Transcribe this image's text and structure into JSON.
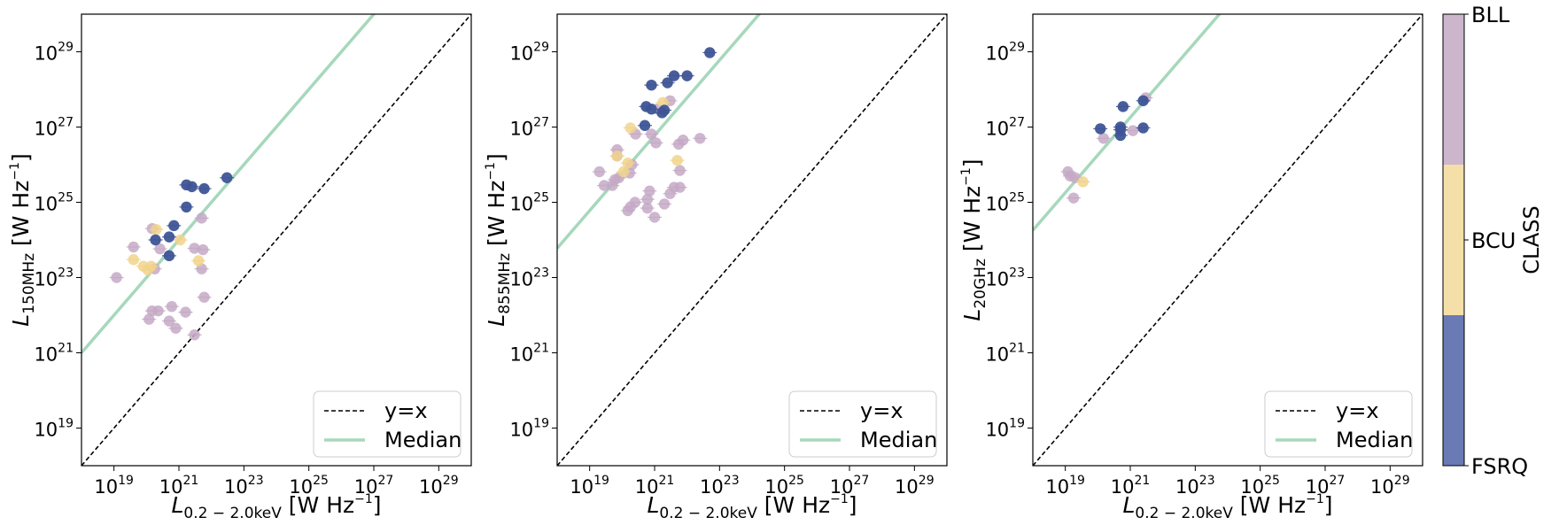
{
  "chart_data": [
    {
      "type": "scatter",
      "panel": "left",
      "xlabel": {
        "main": "L",
        "sub": "0.2 − 2.0keV",
        "unit": " [W Hz",
        "exp": "−1",
        "close": "]"
      },
      "ylabel": {
        "main": "L",
        "sub": "150MHz",
        "unit": " [W Hz",
        "exp": "−1",
        "close": "]"
      },
      "xscale": "log",
      "yscale": "log",
      "xlim": [
        1e+18,
        1e+30
      ],
      "ylim": [
        1e+18,
        1e+30
      ],
      "median_line": {
        "label": "Median",
        "intercept_at_1e18": 1e+21
      },
      "identity_line": {
        "label": "y=x"
      },
      "legend": {
        "position": "bottom-right",
        "entries": [
          "y=x",
          "Median"
        ]
      },
      "series": [
        {
          "name": "FSRQ",
          "points": [
            [
              3e+22,
              4.5e+25
            ],
            [
              6e+21,
              2.3e+25
            ],
            [
              2.5e+21,
              2.6e+25
            ],
            [
              1.7e+21,
              2.9e+25
            ],
            [
              1.7e+21,
              7.5e+24
            ],
            [
              7e+20,
              2.4e+24
            ],
            [
              5e+20,
              1.2e+24
            ],
            [
              1.9e+20,
              1e+24
            ],
            [
              5e+20,
              3.8e+23
            ]
          ]
        },
        {
          "name": "BCU",
          "points": [
            [
              2e+20,
              1.9e+24
            ],
            [
              1.1e+21,
              1e+24
            ],
            [
              4e+19,
              3e+23
            ],
            [
              8e+19,
              2e+23
            ],
            [
              1.4e+20,
              2e+23
            ],
            [
              1.1e+20,
              1.6e+23
            ],
            [
              4e+21,
              2.8e+23
            ]
          ]
        },
        {
          "name": "BLL",
          "points": [
            [
              1.2e+19,
              1e+23
            ],
            [
              4e+19,
              6.5e+23
            ],
            [
              1.5e+20,
              2e+24
            ],
            [
              2.6e+20,
              5.8e+23
            ],
            [
              1.8e+20,
              1.7e+23
            ],
            [
              1.5e+20,
              1.3e+22
            ],
            [
              2.3e+20,
              1.3e+22
            ],
            [
              1.2e+20,
              7.8e+21
            ],
            [
              6e+20,
              1.7e+22
            ],
            [
              5e+20,
              7e+21
            ],
            [
              8e+20,
              4.5e+21
            ],
            [
              1.6e+21,
              1.2e+22
            ],
            [
              3e+21,
              3e+21
            ],
            [
              3e+21,
              6e+23
            ],
            [
              5.5e+21,
              5.5e+23
            ],
            [
              5e+21,
              1.7e+23
            ],
            [
              5e+21,
              3.8e+24
            ],
            [
              6e+21,
              3e+22
            ]
          ]
        }
      ]
    },
    {
      "type": "scatter",
      "panel": "middle",
      "xlabel": {
        "main": "L",
        "sub": "0.2 − 2.0keV",
        "unit": " [W Hz",
        "exp": "−1",
        "close": "]"
      },
      "ylabel": {
        "main": "L",
        "sub": "855MHz",
        "unit": " [W Hz",
        "exp": "−1",
        "close": "]"
      },
      "xscale": "log",
      "yscale": "log",
      "xlim": [
        1e+18,
        1e+30
      ],
      "ylim": [
        1e+18,
        1e+30
      ],
      "median_line": {
        "label": "Median",
        "intercept_at_1e18": 6e+23
      },
      "identity_line": {
        "label": "y=x"
      },
      "legend": {
        "position": "bottom-right",
        "entries": [
          "y=x",
          "Median"
        ]
      },
      "series": [
        {
          "name": "FSRQ",
          "points": [
            [
              5e+22,
              9.5e+28
            ],
            [
              1e+22,
              2.3e+28
            ],
            [
              4e+21,
              2.3e+28
            ],
            [
              2.5e+21,
              1.5e+28
            ],
            [
              8e+20,
              1.3e+28
            ],
            [
              5.5e+20,
              3.5e+27
            ],
            [
              8e+20,
              3e+27
            ],
            [
              2e+21,
              2.8e+27
            ],
            [
              1.7e+21,
              2.4e+27
            ],
            [
              5e+20,
              1.1e+27
            ]
          ]
        },
        {
          "name": "BCU",
          "points": [
            [
              1.8e+20,
              9.5e+26
            ],
            [
              1.8e+21,
              4.5e+27
            ],
            [
              7e+19,
              1.7e+26
            ],
            [
              1.5e+20,
              1.1e+26
            ],
            [
              1.1e+20,
              6.5e+25
            ],
            [
              5e+21,
              1.3e+26
            ]
          ]
        },
        {
          "name": "BLL",
          "points": [
            [
              3e+21,
              5e+27
            ],
            [
              1.2e+21,
              3e+27
            ],
            [
              8e+20,
              6.5e+26
            ],
            [
              2.6e+20,
              6.5e+26
            ],
            [
              1.1e+21,
              3.8e+26
            ],
            [
              2.5e+22,
              5e+26
            ],
            [
              7.5e+21,
              4.5e+26
            ],
            [
              5.5e+21,
              3.5e+26
            ],
            [
              7e+19,
              2.5e+26
            ],
            [
              7e+19,
              1.7e+26
            ],
            [
              2e+19,
              6.5e+25
            ],
            [
              2.8e+19,
              2.8e+25
            ],
            [
              5e+19,
              2.8e+25
            ],
            [
              6e+19,
              4e+25
            ],
            [
              2e+20,
              1e+26
            ],
            [
              1.7e+20,
              6e+25
            ],
            [
              8e+19,
              4.5e+25
            ],
            [
              6e+21,
              7e+25
            ],
            [
              6e+21,
              2.5e+25
            ],
            [
              4e+21,
              2.5e+25
            ],
            [
              3e+21,
              1.7e+25
            ],
            [
              7e+20,
              2e+25
            ],
            [
              6e+20,
              1.2e+25
            ],
            [
              2.5e+20,
              1e+25
            ],
            [
              1.8e+20,
              7.5e+24
            ],
            [
              1.5e+20,
              6e+24
            ],
            [
              2e+21,
              9e+24
            ],
            [
              1e+21,
              4e+24
            ],
            [
              6e+20,
              7e+24
            ]
          ]
        }
      ]
    },
    {
      "type": "scatter",
      "panel": "right",
      "xlabel": {
        "main": "L",
        "sub": "0.2 − 2.0keV",
        "unit": " [W Hz",
        "exp": "−1",
        "close": "]"
      },
      "ylabel": {
        "main": "L",
        "sub": "20GHz",
        "unit": " [W Hz",
        "exp": "−1",
        "close": "]"
      },
      "xscale": "log",
      "yscale": "log",
      "xlim": [
        1e+18,
        1e+30
      ],
      "ylim": [
        1e+18,
        1e+30
      ],
      "median_line": {
        "label": "Median",
        "intercept_at_1e18": 1.8e+24
      },
      "identity_line": {
        "label": "y=x"
      },
      "legend": {
        "position": "bottom-right",
        "entries": [
          "y=x",
          "Median"
        ]
      },
      "series": [
        {
          "name": "FSRQ",
          "points": [
            [
              6e+20,
              3.5e+27
            ],
            [
              2.5e+21,
              5e+27
            ],
            [
              1.2e+20,
              9e+26
            ],
            [
              5e+20,
              1e+27
            ],
            [
              5e+20,
              8.5e+26
            ],
            [
              2.5e+21,
              9.5e+26
            ],
            [
              5e+20,
              6e+26
            ]
          ]
        },
        {
          "name": "BCU",
          "points": [
            [
              3.5e+19,
              3.5e+25
            ]
          ]
        },
        {
          "name": "BLL",
          "points": [
            [
              3e+21,
              6e+27
            ],
            [
              1.5e+20,
              5e+26
            ],
            [
              1.2e+21,
              8e+26
            ],
            [
              1.2e+19,
              6.5e+25
            ],
            [
              1.4e+19,
              5e+25
            ],
            [
              2e+19,
              4.5e+25
            ],
            [
              1.8e+19,
              1.3e+25
            ]
          ]
        }
      ]
    }
  ],
  "ticks": {
    "x": [
      {
        "base": "10",
        "exp": "19"
      },
      {
        "base": "10",
        "exp": "21"
      },
      {
        "base": "10",
        "exp": "23"
      },
      {
        "base": "10",
        "exp": "25"
      },
      {
        "base": "10",
        "exp": "27"
      },
      {
        "base": "10",
        "exp": "29"
      }
    ],
    "y": [
      {
        "base": "10",
        "exp": "19"
      },
      {
        "base": "10",
        "exp": "21"
      },
      {
        "base": "10",
        "exp": "23"
      },
      {
        "base": "10",
        "exp": "25"
      },
      {
        "base": "10",
        "exp": "27"
      },
      {
        "base": "10",
        "exp": "29"
      }
    ]
  },
  "colorbar": {
    "label": "CLASS",
    "classes": [
      {
        "name": "FSRQ",
        "color": "#6a7ab4"
      },
      {
        "name": "BCU",
        "color": "#f5dfa9"
      },
      {
        "name": "BLL",
        "color": "#ccb6cc"
      }
    ]
  },
  "colors": {
    "FSRQ_marker": "#3e5496",
    "BCU_marker": "#f1d48c",
    "BLL_marker": "#c4a9c6",
    "median_line": "#a6d8bc",
    "identity_line": "#000000"
  }
}
